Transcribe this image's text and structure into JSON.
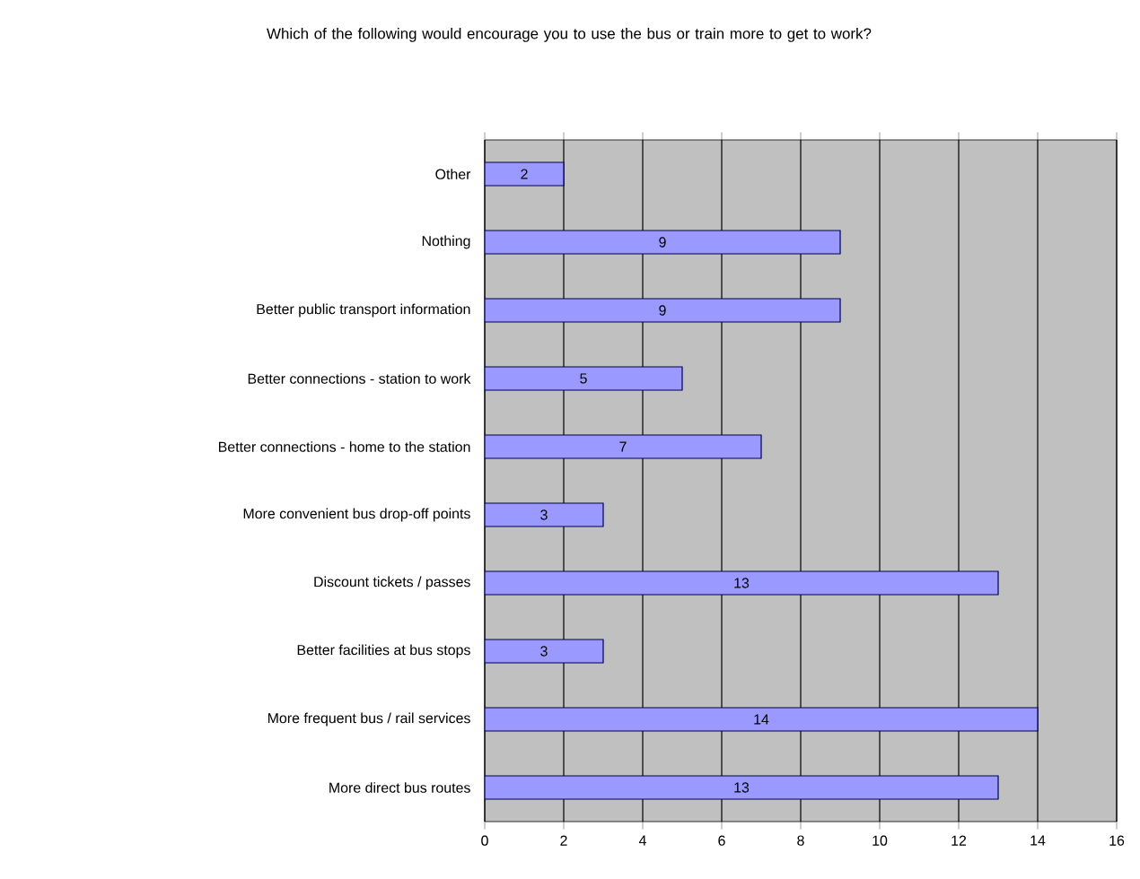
{
  "chart_data": {
    "type": "bar",
    "orientation": "horizontal",
    "title": "Which of the following would encourage you to use the bus or train more to get to work?",
    "categories": [
      "Other",
      "Nothing",
      "Better public transport information",
      "Better connections - station to work",
      "Better connections - home to the station",
      "More convenient bus drop-off points",
      "Discount tickets / passes",
      "Better facilities at bus stops",
      "More frequent bus / rail services",
      "More direct bus routes"
    ],
    "values": [
      2,
      9,
      9,
      5,
      7,
      3,
      13,
      3,
      14,
      13
    ],
    "color": "#9999ff",
    "xlim": [
      0,
      16
    ],
    "xticks": [
      0,
      2,
      4,
      6,
      8,
      10,
      12,
      14,
      16
    ],
    "grid": "x",
    "data_labels": true
  }
}
